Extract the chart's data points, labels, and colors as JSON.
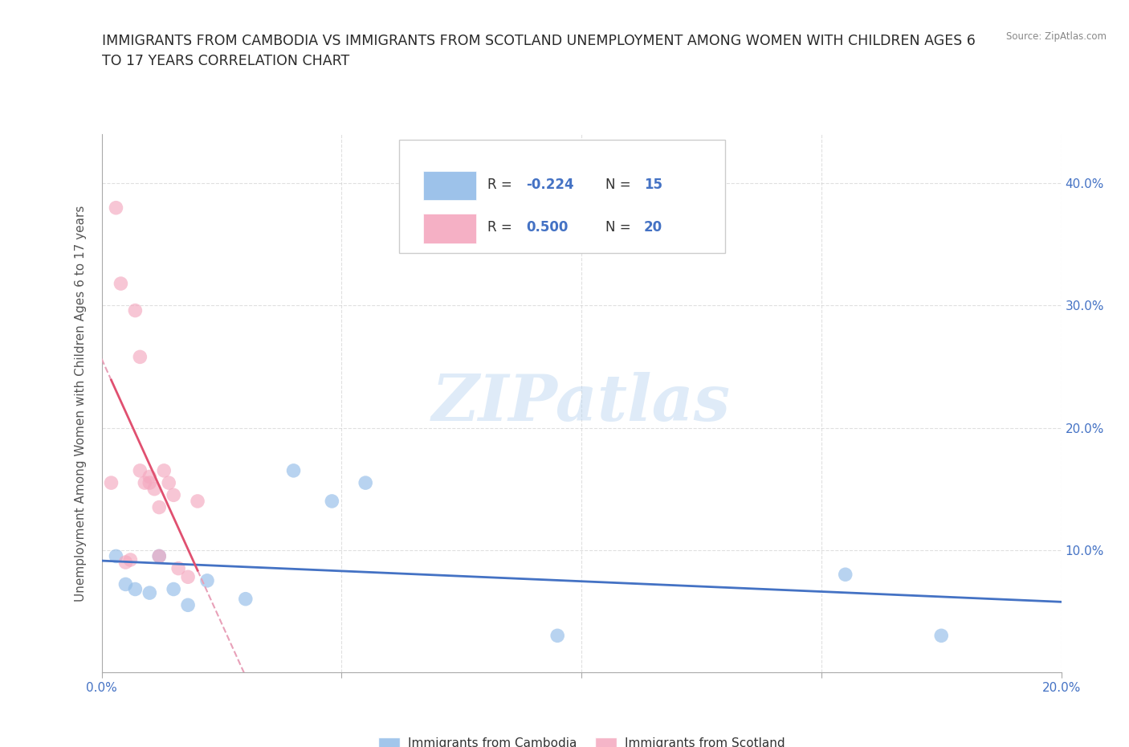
{
  "title_line1": "IMMIGRANTS FROM CAMBODIA VS IMMIGRANTS FROM SCOTLAND UNEMPLOYMENT AMONG WOMEN WITH CHILDREN AGES 6",
  "title_line2": "TO 17 YEARS CORRELATION CHART",
  "source_text": "Source: ZipAtlas.com",
  "ylabel": "Unemployment Among Women with Children Ages 6 to 17 years",
  "xlim": [
    0,
    0.2
  ],
  "ylim": [
    0,
    0.44
  ],
  "xticks": [
    0.0,
    0.05,
    0.1,
    0.15,
    0.2
  ],
  "xticklabels": [
    "0.0%",
    "",
    "",
    "",
    "20.0%"
  ],
  "yticks": [
    0.0,
    0.1,
    0.2,
    0.3,
    0.4
  ],
  "yticklabels": [
    "",
    "10.0%",
    "20.0%",
    "30.0%",
    "40.0%"
  ],
  "cambodia_color": "#92bce8",
  "scotland_color": "#f4a8bf",
  "trendline_cambodia_color": "#4472c4",
  "trendline_scotland_color": "#e05070",
  "trendline_scotland_dashed_color": "#e8a0b8",
  "R_cambodia": -0.224,
  "N_cambodia": 15,
  "R_scotland": 0.5,
  "N_scotland": 20,
  "watermark": "ZIPatlas",
  "cambodia_x": [
    0.003,
    0.005,
    0.007,
    0.01,
    0.012,
    0.015,
    0.018,
    0.022,
    0.03,
    0.04,
    0.048,
    0.055,
    0.095,
    0.155,
    0.175
  ],
  "cambodia_y": [
    0.095,
    0.072,
    0.068,
    0.065,
    0.095,
    0.068,
    0.055,
    0.075,
    0.06,
    0.165,
    0.14,
    0.155,
    0.03,
    0.08,
    0.03
  ],
  "scotland_x": [
    0.002,
    0.003,
    0.004,
    0.005,
    0.006,
    0.007,
    0.008,
    0.008,
    0.009,
    0.01,
    0.01,
    0.011,
    0.012,
    0.012,
    0.013,
    0.014,
    0.015,
    0.016,
    0.018,
    0.02
  ],
  "scotland_y": [
    0.155,
    0.38,
    0.318,
    0.09,
    0.092,
    0.296,
    0.258,
    0.165,
    0.155,
    0.16,
    0.155,
    0.15,
    0.135,
    0.095,
    0.165,
    0.155,
    0.145,
    0.085,
    0.078,
    0.14
  ],
  "background_color": "#ffffff",
  "grid_color": "#cccccc",
  "axis_color": "#aaaaaa",
  "title_color": "#2a2a2a",
  "tick_color_x": "#4472c4",
  "tick_color_y": "#4472c4",
  "legend_label_color": "#333333",
  "R_value_color": "#4472c4",
  "N_value_color": "#4472c4"
}
